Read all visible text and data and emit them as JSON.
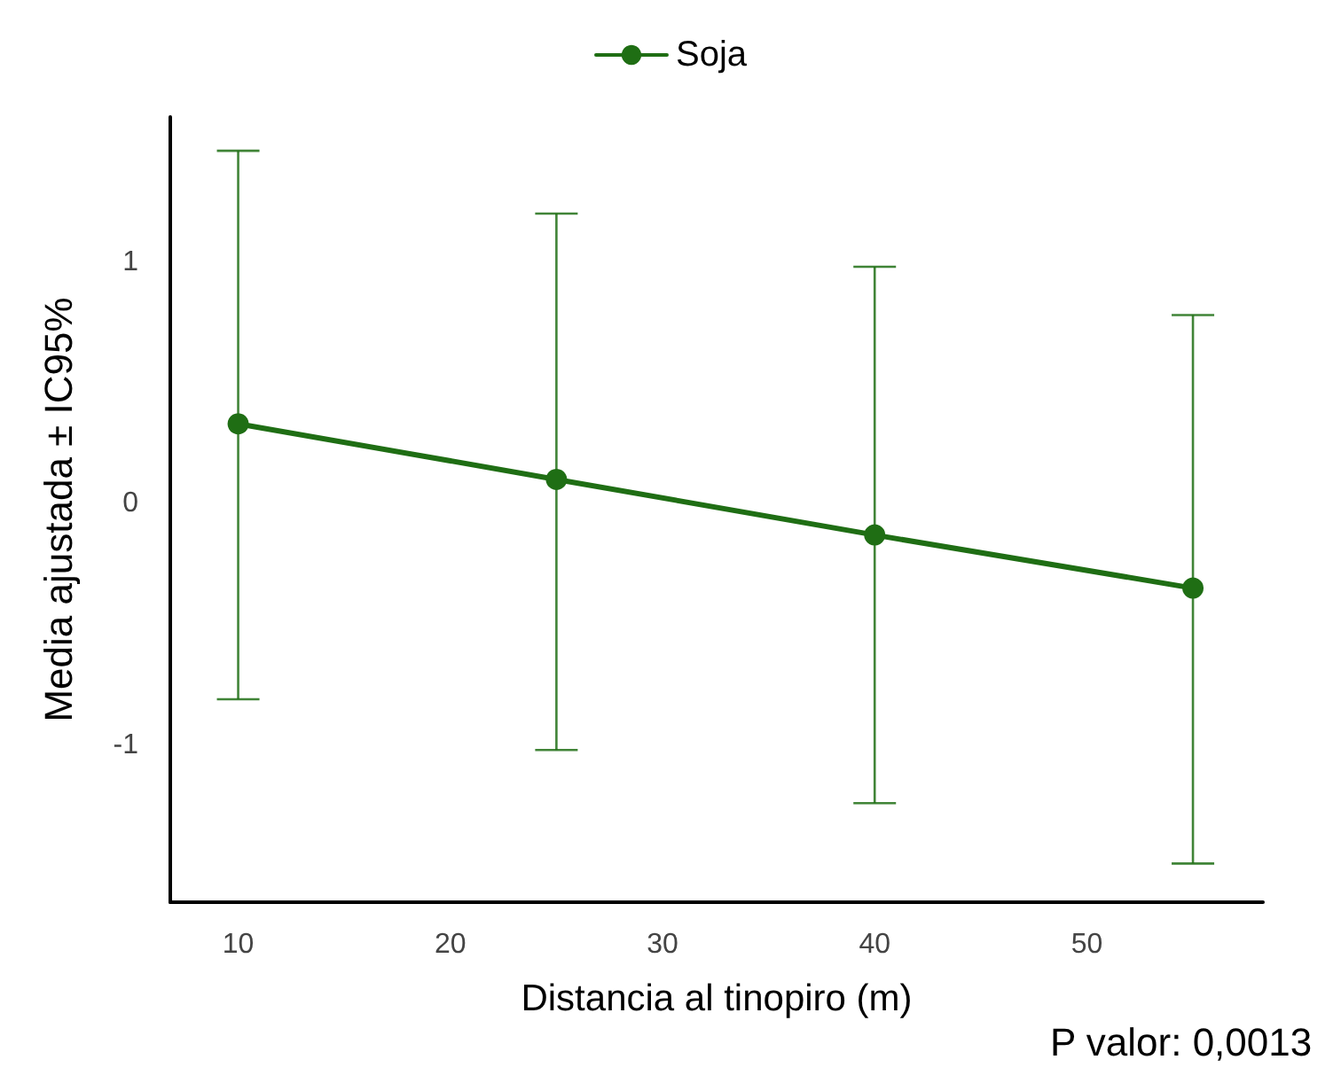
{
  "chart_data": {
    "type": "line",
    "xlabel": "Distancia al tinopiro (m)",
    "ylabel": "Media ajustada ± IC95%",
    "x": [
      10,
      25,
      40,
      55
    ],
    "series": [
      {
        "name": "Soja",
        "color": "#1f6e14",
        "values": [
          0.33,
          0.1,
          -0.13,
          -0.35
        ],
        "errors": [
          [
            -0.81,
            1.46
          ],
          [
            -1.02,
            1.2
          ],
          [
            -1.24,
            0.98
          ],
          [
            -1.49,
            0.78
          ]
        ]
      }
    ],
    "xlim": [
      6.8,
      58.3
    ],
    "xticks": [
      10,
      20,
      30,
      40,
      50
    ],
    "ylim": [
      -1.65,
      1.6
    ],
    "yticks": [
      -1,
      0,
      1
    ],
    "grid": false,
    "legend": "top",
    "marker": "circle",
    "line_style": "solid",
    "annotations": [
      "P valor: 0,0013"
    ]
  }
}
